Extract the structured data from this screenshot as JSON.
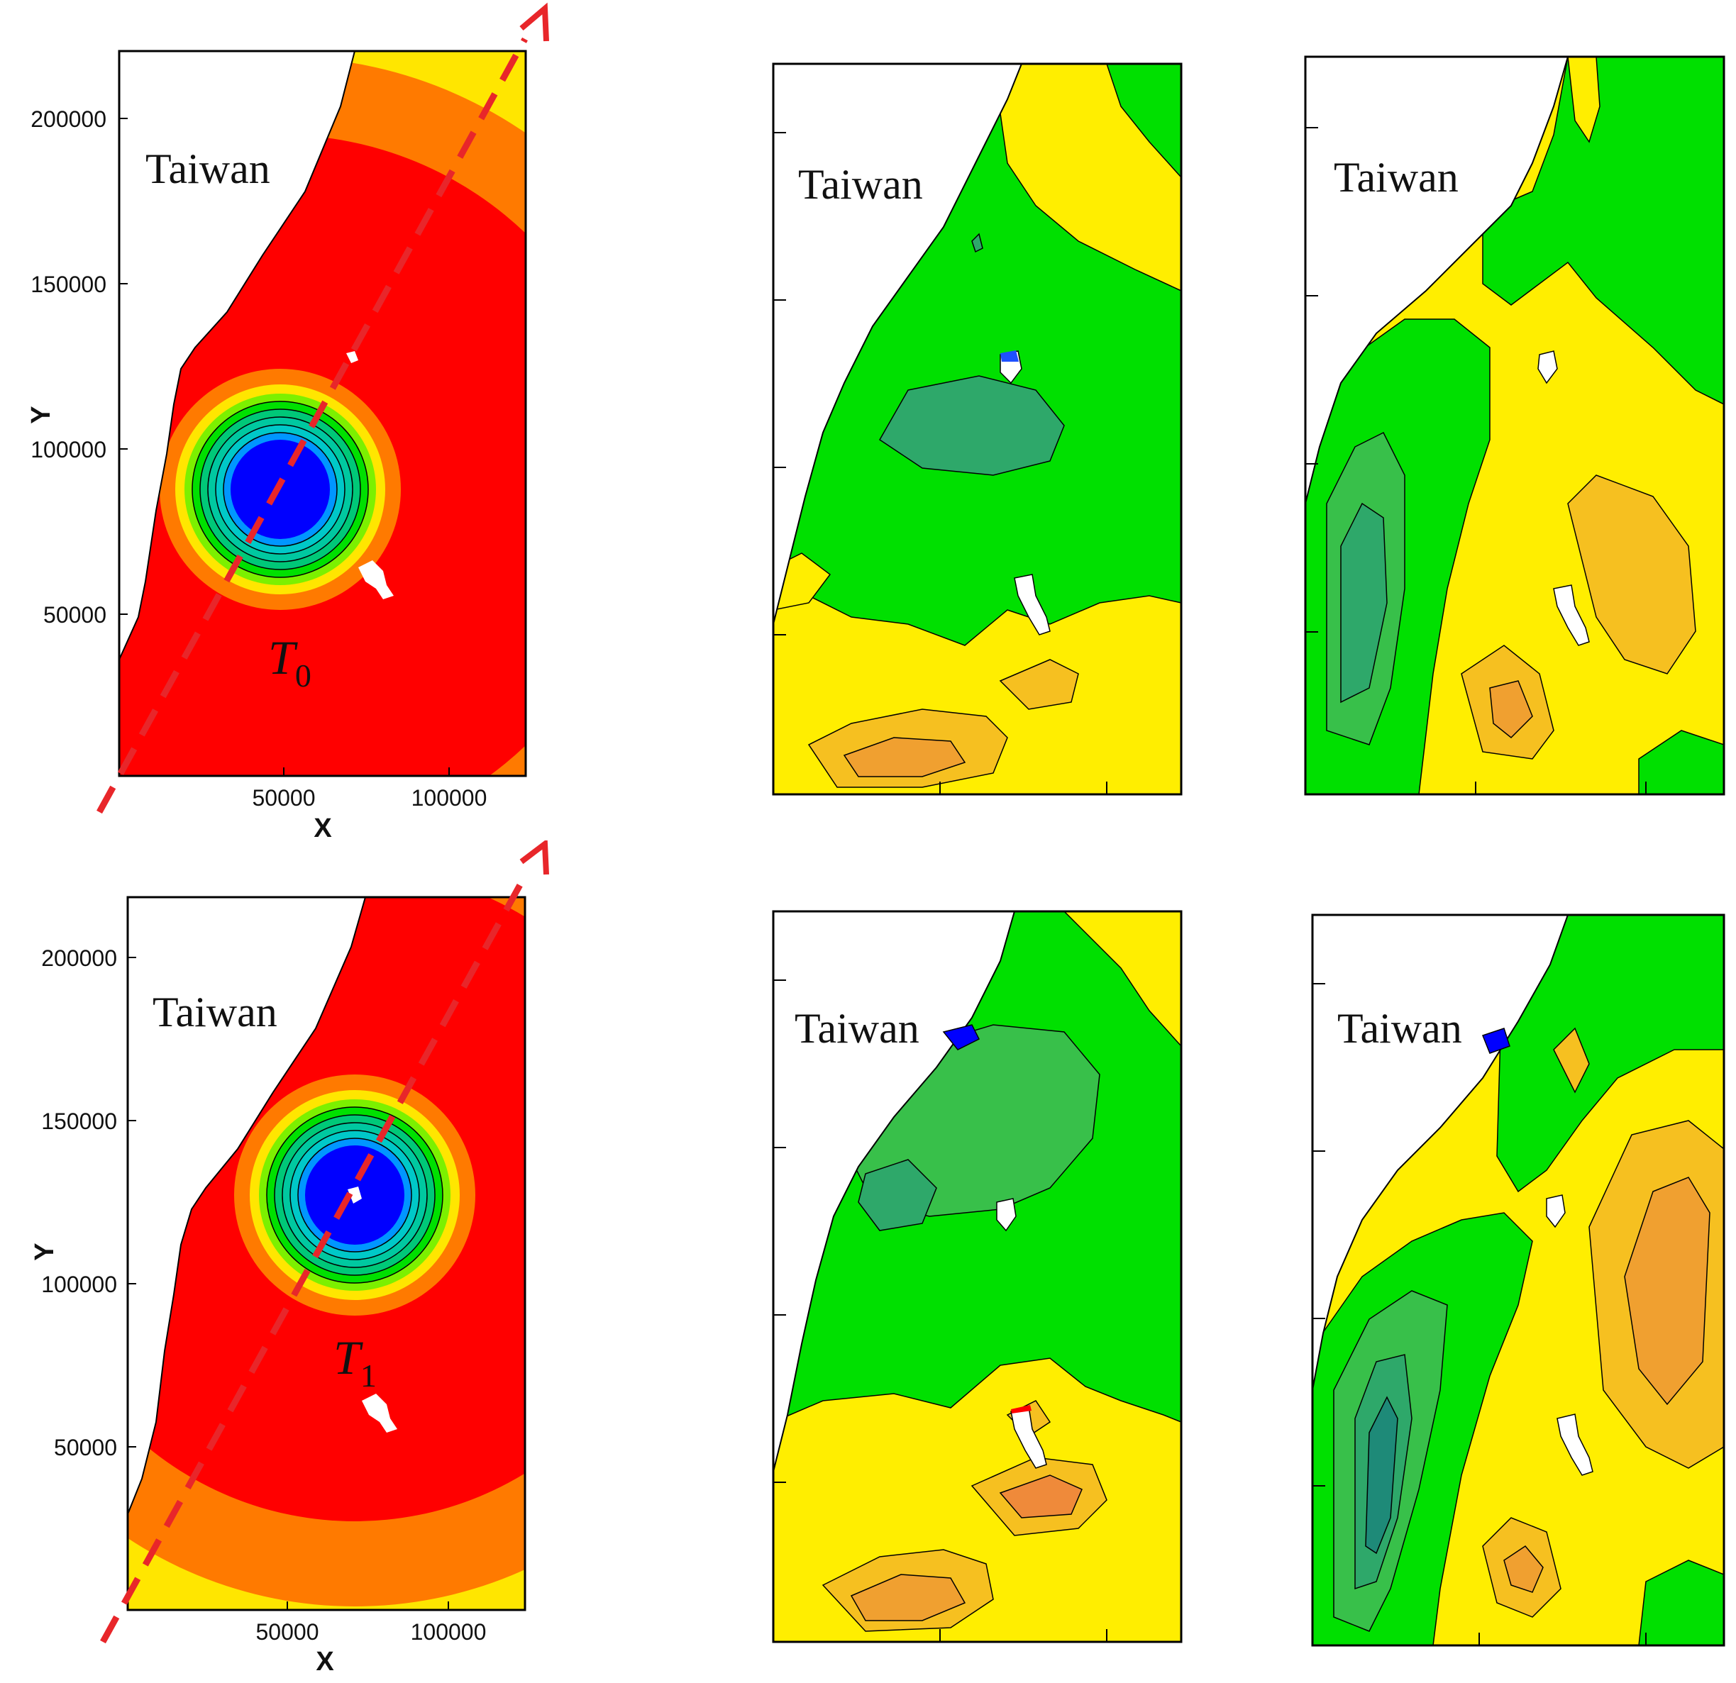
{
  "colors": {
    "land": "#ffffff",
    "frame": "#000000",
    "track": "#e8262a",
    "wind_scale": [
      "#00e000",
      "#7cf000",
      "#ffe600",
      "#ff7a00",
      "#ff0000",
      "#ff7a00",
      "#ffe600",
      "#7cf000",
      "#00e000",
      "#00c878",
      "#00c8c8",
      "#0096ff",
      "#0000ff"
    ],
    "anomaly_scale": [
      "#2ea86a",
      "#38c04a",
      "#00e000",
      "#ffee00",
      "#f6c020",
      "#f0a030",
      "#ef8a3a"
    ]
  },
  "region_label": "Taiwan",
  "axes": {
    "x_label": "X",
    "y_label": "Y",
    "x_ticks": [
      "50000",
      "100000"
    ],
    "y_ticks": [
      "50000",
      "100000",
      "150000",
      "200000"
    ]
  },
  "rows": [
    {
      "time_label": "T",
      "time_sub": "0",
      "typhoon_center_x": 50000,
      "typhoon_center_y": 90000,
      "panels": [
        {
          "name": "wind-field"
        },
        {
          "name": "difference-map-a"
        },
        {
          "name": "difference-map-b"
        }
      ]
    },
    {
      "time_label": "T",
      "time_sub": "1",
      "typhoon_center_x": 72000,
      "typhoon_center_y": 132000,
      "panels": [
        {
          "name": "wind-field"
        },
        {
          "name": "difference-map-a"
        },
        {
          "name": "difference-map-b"
        }
      ]
    }
  ]
}
